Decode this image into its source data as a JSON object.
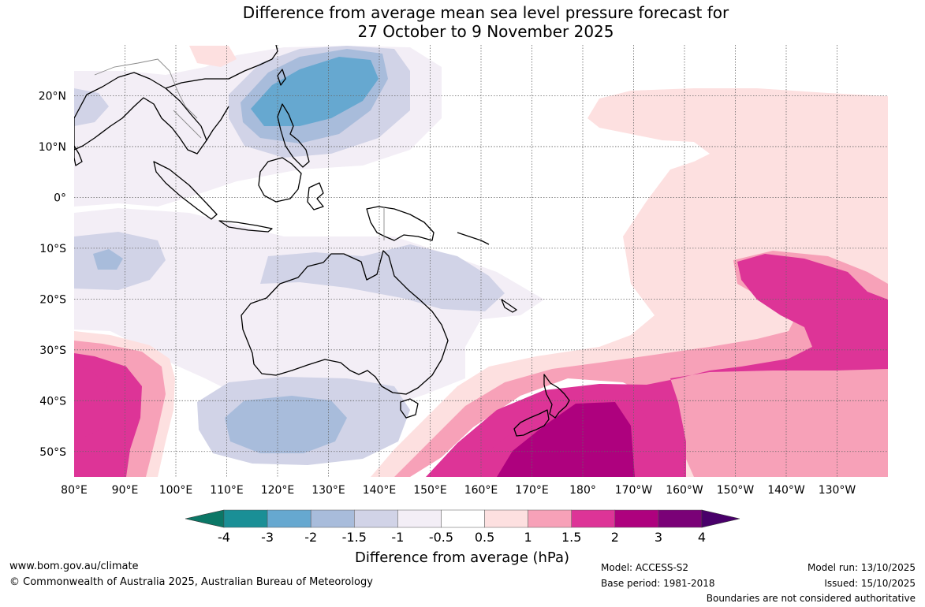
{
  "title": {
    "line1": "Difference from average mean sea level pressure forecast for",
    "line2": "27 October to 9 November 2025"
  },
  "map": {
    "lon_labels": [
      "80°E",
      "90°E",
      "100°E",
      "110°E",
      "120°E",
      "130°E",
      "140°E",
      "150°E",
      "160°E",
      "170°E",
      "180°",
      "170°W",
      "160°W",
      "150°W",
      "140°W",
      "130°W"
    ],
    "lat_labels": [
      "20°N",
      "10°N",
      "0°",
      "10°S",
      "20°S",
      "30°S",
      "40°S",
      "50°S"
    ],
    "extent_lon": [
      80,
      240
    ],
    "extent_lat": [
      -55,
      30
    ],
    "colors": {
      "lt_-3": "#1a8f96",
      "-3_-2": "#66a8d0",
      "-2_-1.5": "#a8bcdb",
      "-1.5_-1": "#d1d3e7",
      "-1_-0.5": "#f3eef6",
      "-0.5_0.5": "#ffffff",
      "0.5_1": "#fde0e0",
      "1_1.5": "#f7a1b8",
      "1.5_2": "#dd3497",
      "2_3": "#ae017e",
      "3_4": "#7a0177",
      "gt_4": "#49006a",
      "extend_low": "#0b7766",
      "coast": "#000000",
      "border": "#888888",
      "grid": "#666666"
    }
  },
  "colorbar": {
    "ticks": [
      "-4",
      "-3",
      "-2",
      "-1.5",
      "-1",
      "-0.5",
      "0.5",
      "1",
      "1.5",
      "2",
      "3",
      "4"
    ],
    "title": "Difference from average (hPa)"
  },
  "footer": {
    "website": "www.bom.gov.au/climate",
    "copyright": "© Commonwealth of Australia 2025, Australian Bureau of Meteorology",
    "model": "Model: ACCESS-S2",
    "base_period": "Base period: 1981-2018",
    "model_run": "Model run: 13/10/2025",
    "issued": "Issued: 15/10/2025",
    "disclaimer": "Boundaries are not considered authoritative"
  }
}
